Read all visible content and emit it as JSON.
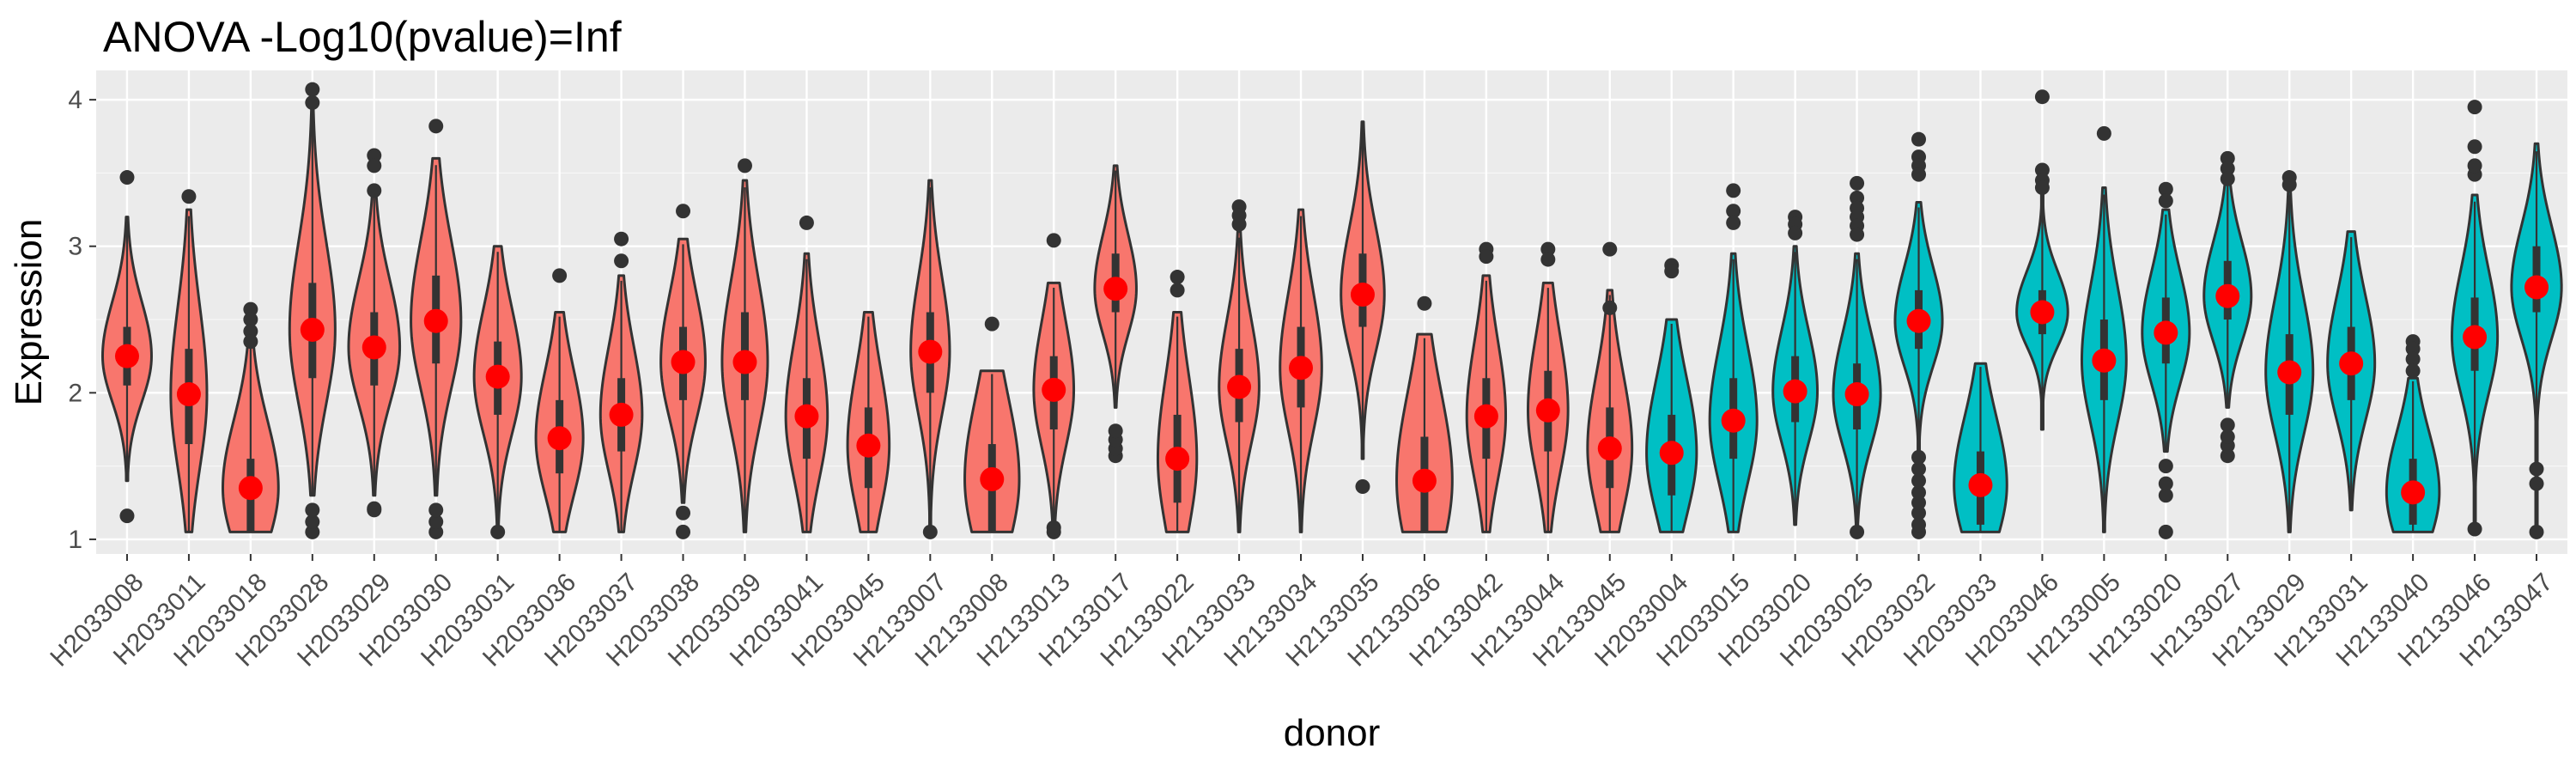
{
  "chart_data": {
    "type": "violin",
    "title": "ANOVA -Log10(pvalue)=Inf",
    "xlabel": "donor",
    "ylabel": "Expression",
    "ylim": [
      0.9,
      4.2
    ],
    "yticks": [
      1,
      2,
      3,
      4
    ],
    "grid": true,
    "legend": "none",
    "colors": {
      "panel": "#ebebeb",
      "grid_major": "#ffffff",
      "group_a_fill": "#f8766d",
      "group_b_fill": "#00bfc4",
      "outline": "#333333",
      "mean_point": "#ff0000",
      "outlier": "#333333"
    },
    "categories": [
      "H2033008",
      "H2033011",
      "H2033018",
      "H2033028",
      "H2033029",
      "H2033030",
      "H2033031",
      "H2033036",
      "H2033037",
      "H2033038",
      "H2033039",
      "H2033041",
      "H2033045",
      "H2133007",
      "H2133008",
      "H2133013",
      "H2133017",
      "H2133022",
      "H2133033",
      "H2133034",
      "H2133035",
      "H2133036",
      "H2133042",
      "H2133044",
      "H2133045",
      "H2033004",
      "H2033015",
      "H2033020",
      "H2033025",
      "H2033032",
      "H2033033",
      "H2033046",
      "H2133005",
      "H2133020",
      "H2133027",
      "H2133029",
      "H2133031",
      "H2133040",
      "H2133046",
      "H2133047"
    ],
    "group": [
      "a",
      "a",
      "a",
      "a",
      "a",
      "a",
      "a",
      "a",
      "a",
      "a",
      "a",
      "a",
      "a",
      "a",
      "a",
      "a",
      "a",
      "a",
      "a",
      "a",
      "a",
      "a",
      "a",
      "a",
      "a",
      "b",
      "b",
      "b",
      "b",
      "b",
      "b",
      "b",
      "b",
      "b",
      "b",
      "b",
      "b",
      "b",
      "b",
      "b"
    ],
    "mean": [
      2.25,
      1.99,
      1.35,
      2.43,
      2.31,
      2.49,
      2.11,
      1.69,
      1.85,
      2.21,
      2.21,
      1.84,
      1.64,
      2.28,
      1.41,
      2.02,
      2.71,
      1.55,
      2.04,
      2.17,
      2.67,
      1.4,
      1.84,
      1.88,
      1.62,
      1.59,
      1.81,
      2.01,
      1.99,
      2.49,
      1.37,
      2.55,
      2.22,
      2.41,
      2.66,
      2.14,
      2.2,
      1.32,
      2.38,
      2.72
    ],
    "q1": [
      2.05,
      1.65,
      1.05,
      2.1,
      2.05,
      2.2,
      1.85,
      1.45,
      1.6,
      1.95,
      1.95,
      1.55,
      1.35,
      2.0,
      1.05,
      1.75,
      2.55,
      1.25,
      1.8,
      1.9,
      2.45,
      1.05,
      1.55,
      1.6,
      1.35,
      1.3,
      1.55,
      1.8,
      1.75,
      2.3,
      1.1,
      2.4,
      1.95,
      2.2,
      2.5,
      1.85,
      1.95,
      1.1,
      2.15,
      2.55
    ],
    "q3": [
      2.45,
      2.3,
      1.55,
      2.75,
      2.55,
      2.8,
      2.35,
      1.95,
      2.1,
      2.45,
      2.55,
      2.1,
      1.9,
      2.55,
      1.65,
      2.25,
      2.95,
      1.85,
      2.3,
      2.45,
      2.95,
      1.7,
      2.1,
      2.15,
      1.9,
      1.85,
      2.1,
      2.25,
      2.2,
      2.7,
      1.6,
      2.7,
      2.5,
      2.65,
      2.9,
      2.4,
      2.45,
      1.55,
      2.65,
      3.0
    ],
    "min": [
      1.4,
      1.05,
      1.05,
      1.3,
      1.3,
      1.3,
      1.1,
      1.05,
      1.05,
      1.25,
      1.05,
      1.05,
      1.05,
      1.05,
      1.05,
      1.1,
      1.9,
      1.05,
      1.05,
      1.05,
      1.55,
      1.05,
      1.05,
      1.05,
      1.05,
      1.05,
      1.05,
      1.1,
      1.1,
      1.55,
      1.05,
      1.75,
      1.05,
      1.6,
      1.9,
      1.05,
      1.2,
      1.05,
      1.1,
      1.1
    ],
    "max": [
      3.2,
      3.25,
      2.35,
      3.95,
      3.4,
      3.6,
      3.0,
      2.55,
      2.8,
      3.05,
      3.45,
      2.95,
      2.55,
      3.45,
      2.15,
      2.75,
      3.55,
      2.55,
      3.1,
      3.25,
      3.85,
      2.4,
      2.8,
      2.75,
      2.7,
      2.5,
      2.95,
      3.0,
      2.95,
      3.3,
      2.2,
      3.35,
      3.4,
      3.25,
      3.45,
      3.4,
      3.1,
      2.1,
      3.35,
      3.7
    ],
    "width": [
      0.88,
      0.65,
      1.0,
      0.82,
      0.92,
      0.9,
      0.85,
      0.85,
      0.75,
      0.8,
      0.82,
      0.75,
      0.75,
      0.7,
      0.98,
      0.72,
      0.75,
      0.7,
      0.72,
      0.75,
      0.78,
      1.0,
      0.7,
      0.72,
      0.8,
      0.9,
      0.85,
      0.8,
      0.85,
      0.85,
      0.95,
      0.92,
      0.8,
      0.85,
      0.85,
      0.85,
      0.85,
      0.95,
      0.82,
      0.9
    ],
    "outliers": [
      [
        1.16,
        3.47
      ],
      [
        3.34
      ],
      [
        2.57,
        2.5,
        2.42,
        2.35
      ],
      [
        1.05,
        1.12,
        1.2,
        4.07,
        3.98
      ],
      [
        1.2,
        1.21,
        3.62,
        3.55,
        3.38
      ],
      [
        1.05,
        1.12,
        1.2,
        3.82
      ],
      [
        1.05
      ],
      [
        2.8
      ],
      [
        2.9,
        3.05
      ],
      [
        1.05,
        1.18,
        3.24
      ],
      [
        3.55
      ],
      [
        3.16
      ],
      [],
      [
        1.05
      ],
      [
        2.47
      ],
      [
        1.05,
        1.08,
        3.04
      ],
      [
        1.57,
        1.62,
        1.68,
        1.74
      ],
      [
        2.79,
        2.7
      ],
      [
        3.27,
        3.21,
        3.15
      ],
      [],
      [
        1.36
      ],
      [
        2.61
      ],
      [
        2.98,
        2.93
      ],
      [
        2.98,
        2.91
      ],
      [
        2.98,
        2.58
      ],
      [
        2.87,
        2.83
      ],
      [
        3.38,
        3.24,
        3.16
      ],
      [
        3.2,
        3.15,
        3.09
      ],
      [
        1.05,
        3.43,
        3.33,
        3.26,
        3.2,
        3.14,
        3.08
      ],
      [
        1.05,
        1.1,
        1.18,
        1.25,
        1.32,
        1.4,
        1.48,
        1.56,
        3.73,
        3.61,
        3.55,
        3.49
      ],
      [],
      [
        3.52,
        3.45,
        3.4,
        4.02
      ],
      [
        3.77
      ],
      [
        1.05,
        1.3,
        1.38,
        1.5,
        3.39,
        3.31
      ],
      [
        1.57,
        1.64,
        1.7,
        1.78,
        3.6,
        3.53,
        3.46
      ],
      [
        3.47,
        3.42
      ],
      [],
      [
        2.35,
        2.3,
        2.23,
        2.15
      ],
      [
        1.07,
        3.49,
        3.55,
        3.68,
        3.95
      ],
      [
        1.05,
        1.38,
        1.48
      ]
    ]
  }
}
